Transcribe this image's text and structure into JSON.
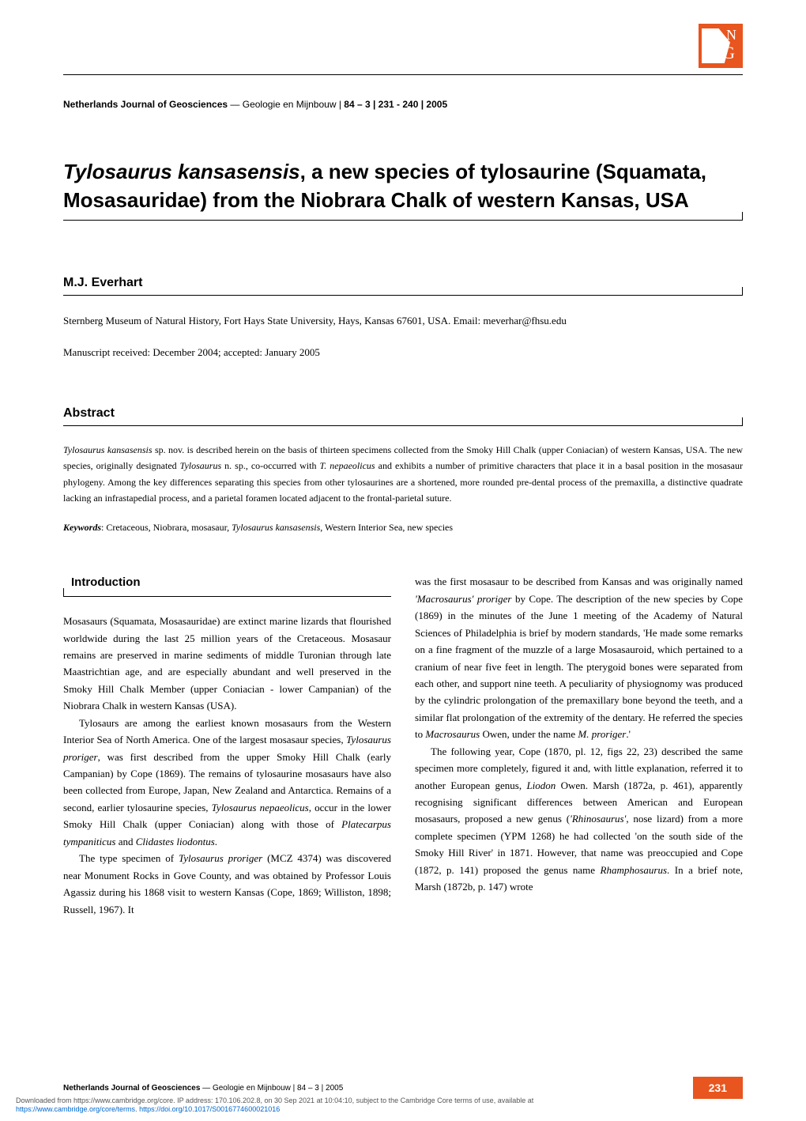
{
  "journal": {
    "name_bold": "Netherlands Journal of Geosciences",
    "name_rest": " — Geologie en Mijnbouw | ",
    "volume": "84 – 3",
    "pages": " | 231 - 240 | ",
    "year": "2005"
  },
  "article": {
    "title_html": "<em>Tylosaurus kansasensis</em>, a new species of tylosaurine (Squamata, Mosasauridae) from the Niobrara Chalk of western Kansas, USA"
  },
  "author": {
    "name": "M.J. Everhart",
    "affiliation": "Sternberg Museum of Natural History, Fort Hays State University, Hays, Kansas 67601, USA. Email: meverhar@fhsu.edu",
    "manuscript": "Manuscript received: December 2004; accepted: January 2005"
  },
  "abstract": {
    "heading": "Abstract",
    "text_html": "<em>Tylosaurus kansasensis</em> sp. nov. is described herein on the basis of thirteen specimens collected from the Smoky Hill Chalk (upper Coniacian) of western Kansas, USA. The new species, originally designated <em>Tylosaurus</em> n. sp., co-occurred with <em>T. nepaeolicus</em> and exhibits a number of primitive characters that place it in a basal position in the mosasaur phylogeny. Among the key differences separating this species from other tylosaurines are a shortened, more rounded pre-dental process of the premaxilla, a distinctive quadrate lacking an infrastapedial process, and a parietal foramen located adjacent to the frontal-parietal suture.",
    "keywords_label": "Keywords",
    "keywords_html": ": Cretaceous, Niobrara, mosasaur, <em>Tylosaurus kansasensis</em>, Western Interior Sea, new species"
  },
  "introduction": {
    "heading": "Introduction",
    "left_p1_html": "Mosasaurs (Squamata, Mosasauridae) are extinct marine lizards that flourished worldwide during the last 25 million years of the Cretaceous. Mosasaur remains are preserved in marine sediments of middle Turonian through late Maastrichtian age, and are especially abundant and well preserved in the Smoky Hill Chalk Member (upper Coniacian - lower Campanian) of the Niobrara Chalk in western Kansas (USA).",
    "left_p2_html": "Tylosaurs are among the earliest known mosasaurs from the Western Interior Sea of North America. One of the largest mosasaur species, <em>Tylosaurus proriger</em>, was first described from the upper Smoky Hill Chalk (early Campanian) by Cope (1869). The remains of tylosaurine mosasaurs have also been collected from Europe, Japan, New Zealand and Antarctica. Remains of a second, earlier tylosaurine species, <em>Tylosaurus nepaeolicus</em>, occur in the lower Smoky Hill Chalk (upper Coniacian) along with those of <em>Platecarpus tympaniticus</em> and <em>Clidastes liodontus</em>.",
    "left_p3_html": "The type specimen of <em>Tylosaurus proriger</em> (MCZ 4374) was discovered near Monument Rocks in Gove County, and was obtained by Professor Louis Agassiz during his 1868 visit to western Kansas (Cope, 1869; Williston, 1898; Russell, 1967). It",
    "right_p1_html": "was the first mosasaur to be described from Kansas and was originally named <em>'Macrosaurus' proriger</em> by Cope. The description of the new species by Cope (1869) in the minutes of the June 1 meeting of the Academy of Natural Sciences of Philadelphia is brief by modern standards, 'He made some remarks on a fine fragment of the muzzle of a large Mosasauroid, which pertained to a cranium of near five feet in length. The pterygoid bones were separated from each other, and support nine teeth. A peculiarity of physiognomy was produced by the cylindric prolongation of the premaxillary bone beyond the teeth, and a similar flat prolongation of the extremity of the dentary. He referred the species to <em>Macrosaurus</em> Owen, under the name <em>M. proriger</em>.'",
    "right_p2_html": "The following year, Cope (1870, pl. 12, figs 22, 23) described the same specimen more completely, figured it and, with little explanation, referred it to another European genus, <em>Liodon</em> Owen. Marsh (1872a, p. 461), apparently recognising significant differences between American and European mosasaurs, proposed a new genus (<em>'Rhinosaurus'</em>, nose lizard) from a more complete specimen (YPM 1268) he had collected 'on the south side of the Smoky Hill River' in 1871. However, that name was preoccupied and Cope (1872, p. 141) proposed the genus name <em>Rhamphosaurus</em>. In a brief note, Marsh (1872b, p. 147) wrote"
  },
  "footer": {
    "text_bold": "Netherlands Journal of Geosciences",
    "text_rest": " — Geologie en Mijnbouw | 84 – 3 | 2005",
    "page_number": "231",
    "download_line1": "Downloaded from https://www.cambridge.org/core. IP address: 170.106.202.8, on 30 Sep 2021 at 10:04:10, subject to the Cambridge Core terms of use, available at",
    "download_line2_url": "https://www.cambridge.org/core/terms",
    "download_line2_sep": ". ",
    "download_line2_doi": "https://doi.org/10.1017/S0016774600021016"
  },
  "colors": {
    "accent": "#e8551e",
    "text": "#000000",
    "link": "#0066cc"
  }
}
